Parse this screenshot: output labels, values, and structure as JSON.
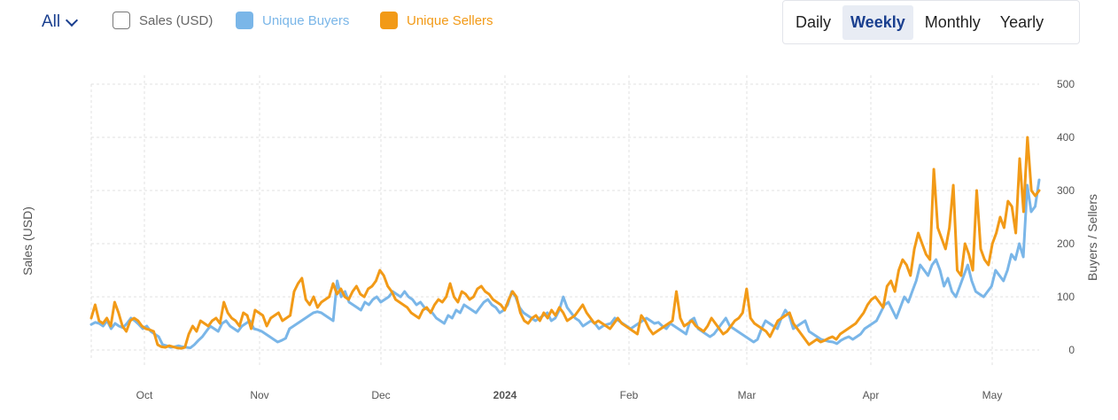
{
  "scope": {
    "label": "All",
    "icon": "chevron-down-icon"
  },
  "legend": [
    {
      "key": "sales",
      "label": "Sales (USD)",
      "color": "#777777",
      "active": false
    },
    {
      "key": "buyers",
      "label": "Unique Buyers",
      "color": "#7ab6e8",
      "active": true
    },
    {
      "key": "sellers",
      "label": "Unique Sellers",
      "color": "#f29a17",
      "active": true
    }
  ],
  "periods": [
    {
      "label": "Daily",
      "active": false
    },
    {
      "label": "Weekly",
      "active": true
    },
    {
      "label": "Monthly",
      "active": false
    },
    {
      "label": "Yearly",
      "active": false
    }
  ],
  "chart_data": {
    "type": "line",
    "xlabel": "",
    "ylabel_left": "Sales (USD)",
    "ylabel_right": "Buyers / Sellers",
    "x_ticks": [
      {
        "label": "Oct",
        "bold": false
      },
      {
        "label": "Nov",
        "bold": false
      },
      {
        "label": "Dec",
        "bold": false
      },
      {
        "label": "2024",
        "bold": true
      },
      {
        "label": "Feb",
        "bold": false
      },
      {
        "label": "Mar",
        "bold": false
      },
      {
        "label": "Apr",
        "bold": false
      },
      {
        "label": "May",
        "bold": false
      }
    ],
    "y_right_ticks": [
      0,
      100,
      200,
      300,
      400,
      500
    ],
    "ylim": [
      0,
      500
    ],
    "grid": true,
    "series": [
      {
        "name": "Unique Buyers",
        "color": "#7ab6e8",
        "values": [
          48,
          52,
          50,
          45,
          55,
          40,
          50,
          45,
          42,
          50,
          60,
          55,
          48,
          40,
          45,
          35,
          30,
          25,
          10,
          8,
          5,
          6,
          8,
          6,
          5,
          4,
          10,
          18,
          25,
          35,
          45,
          40,
          35,
          50,
          55,
          45,
          40,
          35,
          45,
          50,
          55,
          40,
          38,
          35,
          30,
          25,
          20,
          15,
          18,
          22,
          40,
          45,
          50,
          55,
          60,
          65,
          70,
          72,
          70,
          65,
          60,
          55,
          130,
          100,
          110,
          90,
          85,
          80,
          75,
          90,
          85,
          95,
          100,
          90,
          95,
          100,
          110,
          105,
          100,
          110,
          100,
          95,
          85,
          90,
          80,
          75,
          70,
          60,
          55,
          50,
          65,
          60,
          75,
          70,
          85,
          80,
          75,
          70,
          80,
          90,
          95,
          85,
          80,
          70,
          75,
          85,
          110,
          100,
          80,
          70,
          65,
          60,
          55,
          60,
          65,
          70,
          55,
          60,
          75,
          100,
          80,
          70,
          60,
          55,
          45,
          50,
          55,
          50,
          40,
          45,
          48,
          50,
          60,
          55,
          50,
          45,
          40,
          45,
          50,
          55,
          60,
          55,
          50,
          52,
          45,
          40,
          50,
          45,
          40,
          35,
          30,
          55,
          60,
          40,
          35,
          30,
          25,
          30,
          40,
          50,
          60,
          45,
          40,
          35,
          30,
          25,
          20,
          15,
          20,
          40,
          55,
          50,
          45,
          40,
          60,
          75,
          65,
          40,
          45,
          50,
          55,
          35,
          30,
          25,
          20,
          18,
          16,
          15,
          12,
          18,
          22,
          25,
          20,
          25,
          30,
          40,
          45,
          50,
          55,
          70,
          85,
          90,
          75,
          60,
          80,
          100,
          90,
          110,
          130,
          160,
          150,
          140,
          160,
          170,
          150,
          120,
          135,
          110,
          100,
          120,
          140,
          160,
          130,
          110,
          105,
          100,
          110,
          120,
          150,
          140,
          130,
          150,
          180,
          170,
          200,
          175,
          310,
          260,
          270,
          320
        ]
      },
      {
        "name": "Unique Sellers",
        "color": "#f29a17",
        "values": [
          60,
          85,
          55,
          50,
          60,
          45,
          90,
          70,
          45,
          35,
          55,
          60,
          55,
          45,
          40,
          38,
          35,
          10,
          6,
          5,
          8,
          6,
          4,
          3,
          5,
          30,
          45,
          35,
          55,
          50,
          45,
          55,
          60,
          50,
          90,
          70,
          60,
          55,
          45,
          70,
          65,
          40,
          75,
          70,
          65,
          45,
          60,
          65,
          70,
          55,
          60,
          65,
          110,
          125,
          135,
          95,
          85,
          100,
          80,
          90,
          95,
          100,
          125,
          105,
          115,
          100,
          95,
          110,
          120,
          105,
          100,
          115,
          120,
          130,
          150,
          140,
          120,
          110,
          95,
          90,
          85,
          80,
          70,
          65,
          60,
          75,
          80,
          70,
          85,
          95,
          90,
          100,
          125,
          100,
          90,
          110,
          105,
          95,
          100,
          115,
          120,
          110,
          105,
          95,
          90,
          85,
          75,
          95,
          110,
          100,
          70,
          55,
          50,
          60,
          65,
          55,
          70,
          60,
          75,
          65,
          80,
          70,
          55,
          60,
          65,
          75,
          85,
          70,
          60,
          50,
          55,
          50,
          45,
          40,
          50,
          60,
          50,
          45,
          40,
          35,
          30,
          65,
          55,
          40,
          30,
          35,
          40,
          45,
          50,
          55,
          110,
          60,
          45,
          50,
          55,
          45,
          40,
          35,
          45,
          60,
          50,
          40,
          30,
          35,
          45,
          55,
          60,
          70,
          115,
          60,
          50,
          45,
          40,
          35,
          25,
          40,
          55,
          60,
          65,
          70,
          50,
          40,
          30,
          20,
          10,
          15,
          20,
          15,
          18,
          22,
          25,
          20,
          30,
          35,
          40,
          45,
          50,
          60,
          70,
          85,
          95,
          100,
          90,
          80,
          120,
          130,
          110,
          150,
          170,
          160,
          140,
          190,
          220,
          200,
          180,
          170,
          340,
          230,
          210,
          190,
          230,
          310,
          150,
          140,
          200,
          180,
          150,
          300,
          190,
          170,
          160,
          200,
          220,
          250,
          230,
          280,
          270,
          220,
          360,
          260,
          400,
          300,
          290,
          300
        ]
      }
    ]
  }
}
